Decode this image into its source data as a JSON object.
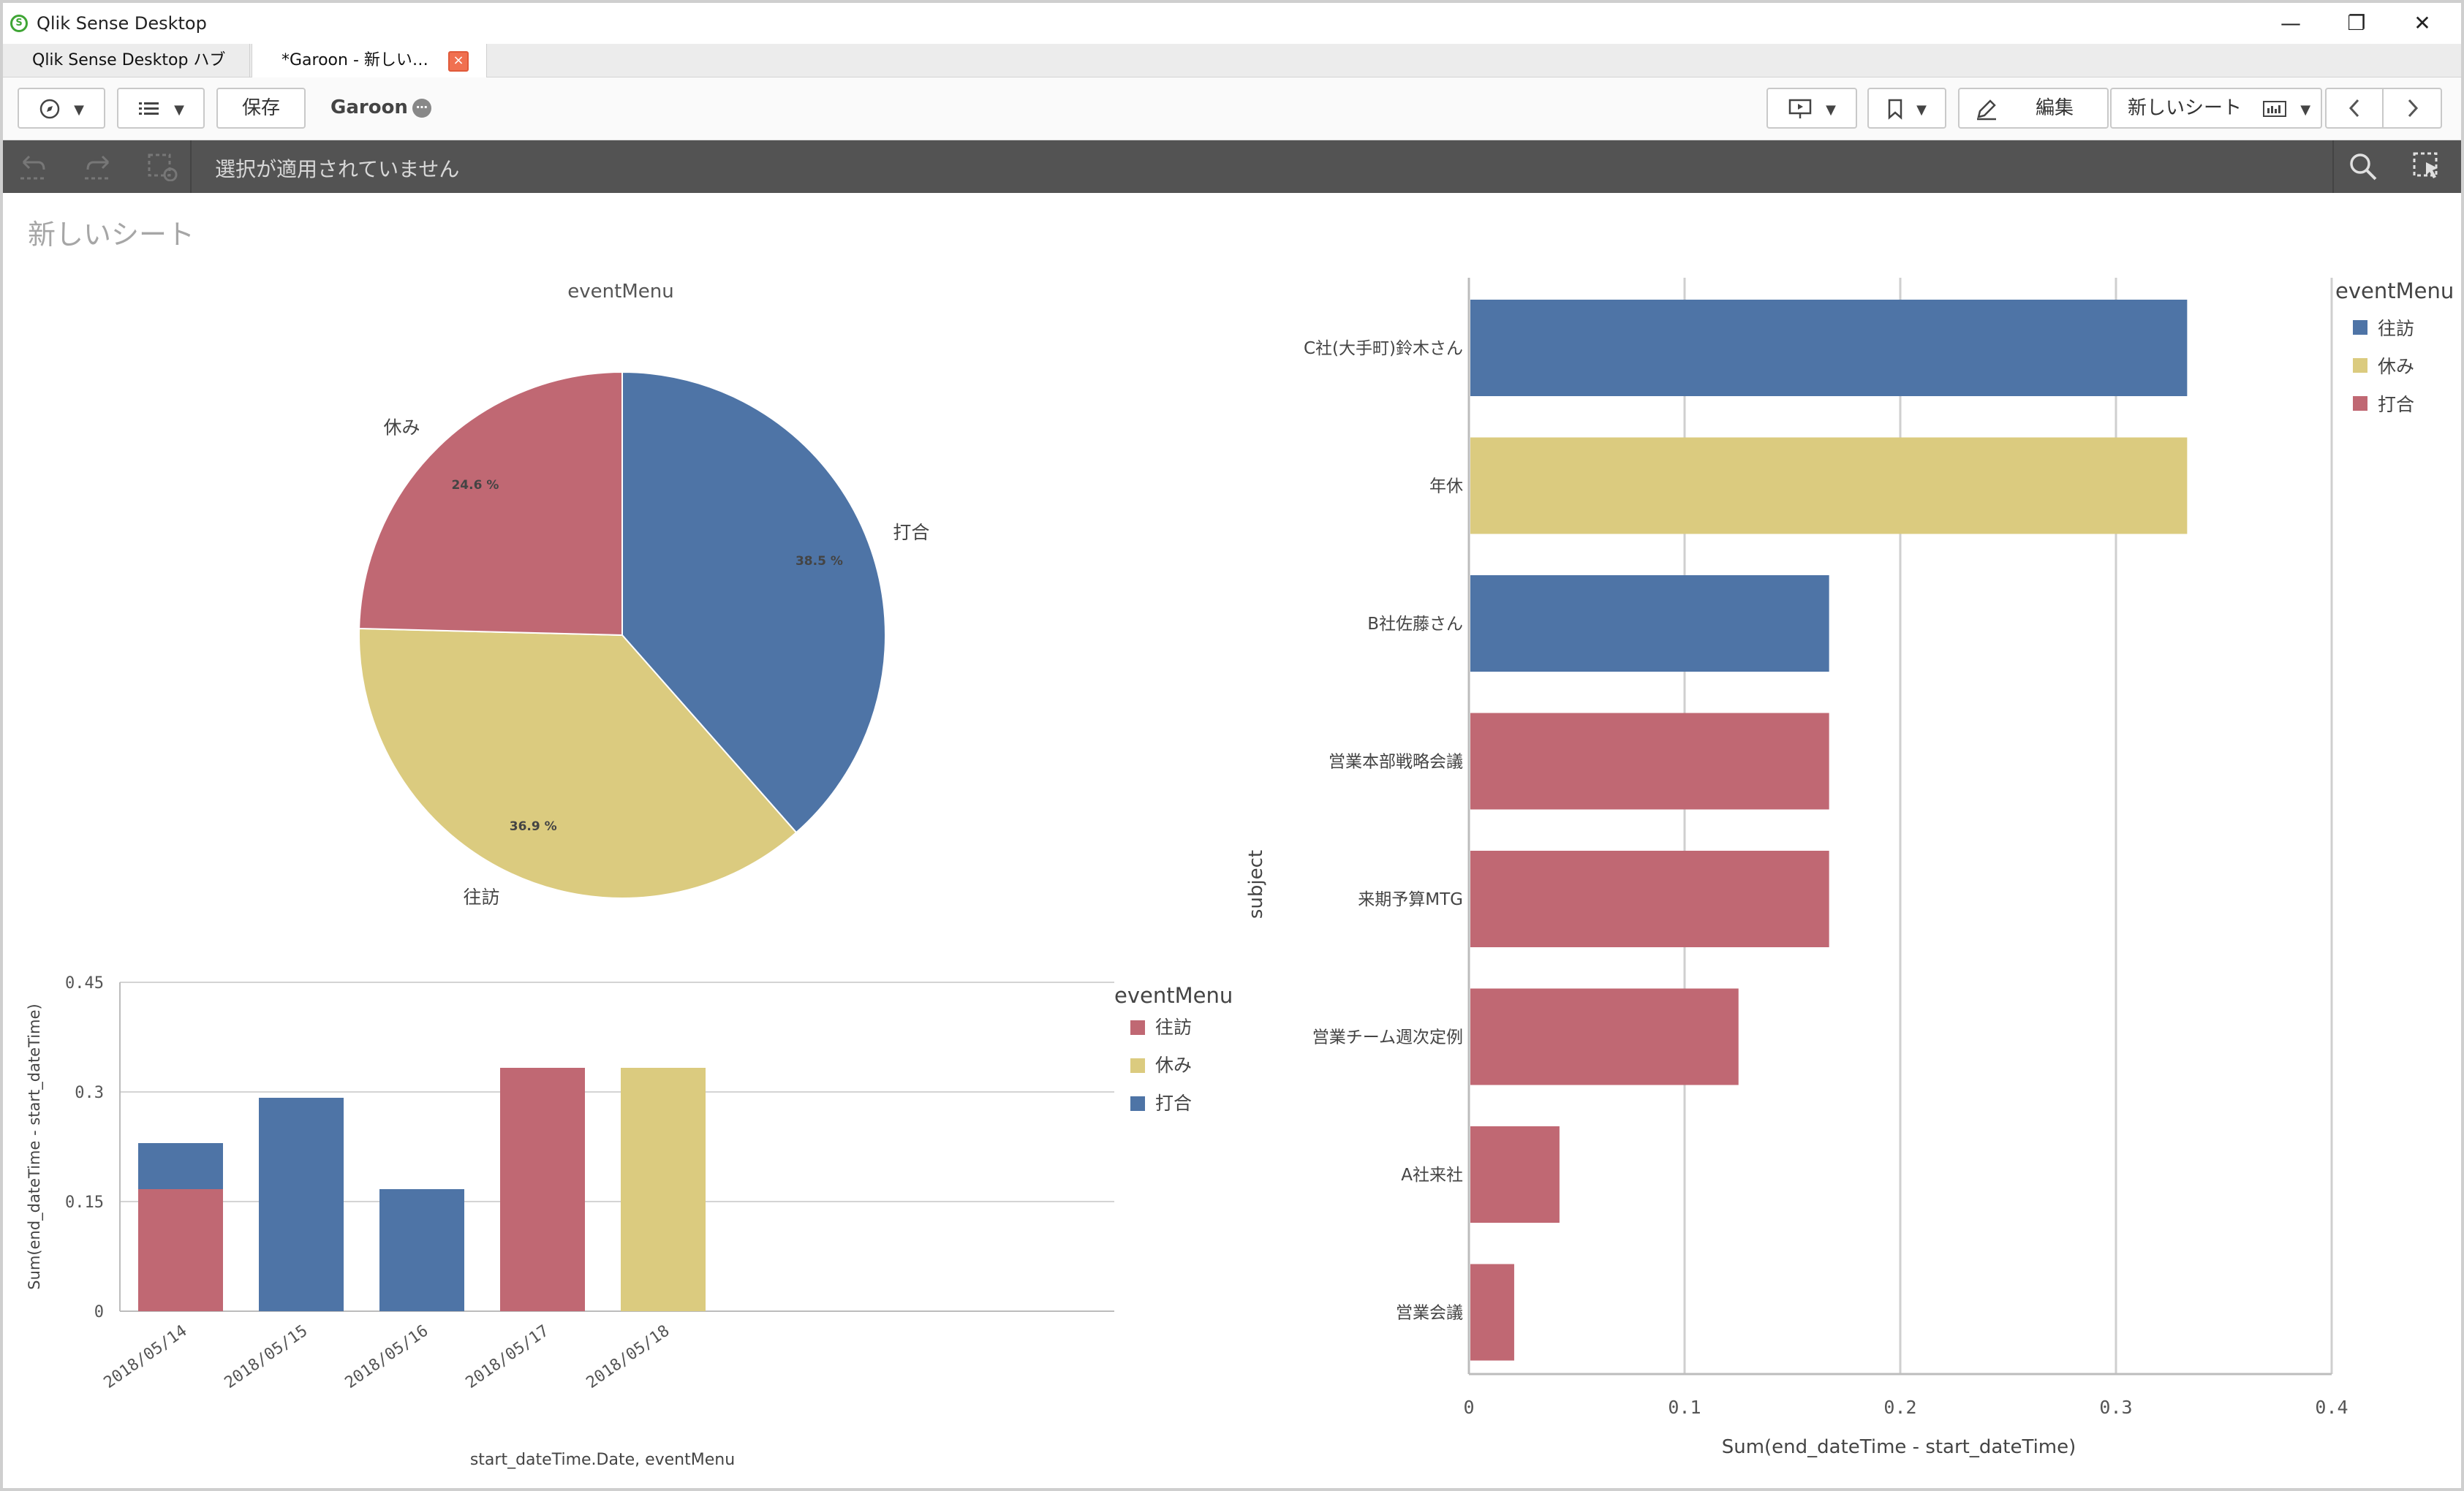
{
  "window": {
    "title": "Qlik Sense Desktop",
    "controls": {
      "minimize": "—",
      "restore": "❐",
      "close": "✕"
    }
  },
  "tabs": [
    {
      "label": "Qlik Sense Desktop ハブ"
    },
    {
      "label": "*Garoon - 新しい…",
      "close": "×"
    }
  ],
  "toolbar": {
    "save_label": "保存",
    "app_name": "Garoon",
    "edit_label": "編集",
    "sheet_label": "新しいシート"
  },
  "selection_bar": {
    "text": "選択が適用されていません"
  },
  "sheet": {
    "title": "新しいシート"
  },
  "colors": {
    "blue": "#4e74a6",
    "yellow": "#dbcb7f",
    "red": "#c06873"
  },
  "pie_chart": {
    "title": "eventMenu",
    "chart_data": {
      "type": "pie",
      "title": "eventMenu",
      "slices": [
        {
          "label": "打合",
          "value": 38.5,
          "pct_label": "38.5 %",
          "color": "#4e74a6"
        },
        {
          "label": "往訪",
          "value": 36.9,
          "pct_label": "36.9 %",
          "color": "#dbcb7f"
        },
        {
          "label": "休み",
          "value": 24.6,
          "pct_label": "24.6 %",
          "color": "#c06873"
        }
      ]
    }
  },
  "stacked_bar_chart": {
    "legend_title": "eventMenu",
    "chart_data": {
      "type": "bar",
      "stacked": true,
      "categories": [
        "2018/05/14",
        "2018/05/15",
        "2018/05/16",
        "2018/05/17",
        "2018/05/18"
      ],
      "series": [
        {
          "name": "往訪",
          "color": "#c06873",
          "values": [
            0.167,
            0,
            0,
            0.333,
            0
          ]
        },
        {
          "name": "休み",
          "color": "#dbcb7f",
          "values": [
            0,
            0,
            0,
            0,
            0.333
          ]
        },
        {
          "name": "打合",
          "color": "#4e74a6",
          "values": [
            0.063,
            0.292,
            0.167,
            0,
            0
          ]
        }
      ],
      "ylim": [
        0,
        0.45
      ],
      "yticks": [
        "0",
        "0.15",
        "0.3",
        "0.45"
      ],
      "xlabel": "start_dateTime.Date, eventMenu",
      "ylabel": "Sum(end_dateTime - start_dateTime)",
      "grid": true,
      "legend": "right"
    }
  },
  "hbar_chart": {
    "legend_title": "eventMenu",
    "chart_data": {
      "type": "bar",
      "orientation": "horizontal",
      "categories": [
        "C社(大手町)鈴木さん",
        "年休",
        "B社佐藤さん",
        "営業本部戦略会議",
        "来期予算MTG",
        "営業チーム週次定例",
        "A社来社",
        "営業会議"
      ],
      "values": [
        0.333,
        0.333,
        0.167,
        0.167,
        0.167,
        0.125,
        0.042,
        0.021
      ],
      "bar_colors": [
        "#4e74a6",
        "#dbcb7f",
        "#4e74a6",
        "#c06873",
        "#c06873",
        "#c06873",
        "#c06873",
        "#c06873"
      ],
      "xlim": [
        0,
        0.4
      ],
      "xticks": [
        "0",
        "0.1",
        "0.2",
        "0.3",
        "0.4"
      ],
      "xlabel": "Sum(end_dateTime - start_dateTime)",
      "ylabel": "subject",
      "grid": true,
      "legend_entries": [
        {
          "name": "往訪",
          "color": "#4e74a6"
        },
        {
          "name": "休み",
          "color": "#dbcb7f"
        },
        {
          "name": "打合",
          "color": "#c06873"
        }
      ],
      "legend": "top-right"
    }
  }
}
